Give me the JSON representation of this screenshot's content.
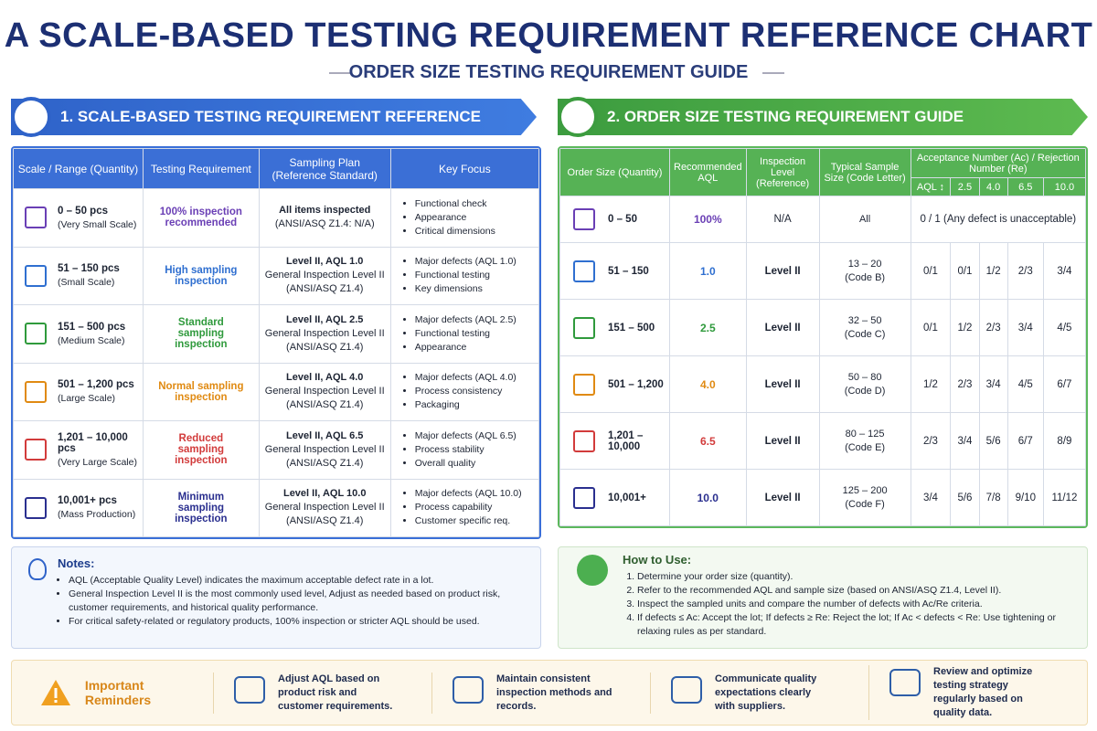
{
  "header": {
    "title": "A SCALE-BASED TESTING REQUIREMENT REFERENCE CHART",
    "subtitle": "ORDER SIZE TESTING REQUIREMENT GUIDE"
  },
  "left": {
    "title": "1. SCALE-BASED TESTING REQUIREMENT REFERENCE",
    "columns": [
      "Scale / Range (Quantity)",
      "Testing Requirement",
      "Sampling Plan (Reference Standard)",
      "Key Focus"
    ],
    "rows": [
      {
        "range": "0 – 50 pcs",
        "scale": "(Very Small Scale)",
        "requirement": "100% inspection recommended",
        "plan": [
          "All items inspected",
          "(ANSI/ASQ Z1.4: N/A)"
        ],
        "focus": [
          "Functional check",
          "Appearance",
          "Critical dimensions"
        ]
      },
      {
        "range": "51 – 150 pcs",
        "scale": "(Small Scale)",
        "requirement": "High sampling inspection",
        "plan": [
          "Level II, AQL 1.0",
          "General Inspection Level II",
          "(ANSI/ASQ Z1.4)"
        ],
        "focus": [
          "Major defects (AQL 1.0)",
          "Functional testing",
          "Key dimensions"
        ]
      },
      {
        "range": "151 – 500 pcs",
        "scale": "(Medium Scale)",
        "requirement": "Standard sampling inspection",
        "plan": [
          "Level II, AQL 2.5",
          "General Inspection Level II",
          "(ANSI/ASQ Z1.4)"
        ],
        "focus": [
          "Major defects (AQL 2.5)",
          "Functional testing",
          "Appearance"
        ]
      },
      {
        "range": "501 – 1,200 pcs",
        "scale": "(Large Scale)",
        "requirement": "Normal sampling inspection",
        "plan": [
          "Level II, AQL 4.0",
          "General Inspection Level II",
          "(ANSI/ASQ Z1.4)"
        ],
        "focus": [
          "Major defects (AQL 4.0)",
          "Process consistency",
          "Packaging"
        ]
      },
      {
        "range": "1,201 – 10,000 pcs",
        "scale": "(Very Large Scale)",
        "requirement": "Reduced sampling inspection",
        "plan": [
          "Level II, AQL 6.5",
          "General Inspection Level II",
          "(ANSI/ASQ Z1.4)"
        ],
        "focus": [
          "Major defects (AQL 6.5)",
          "Process stability",
          "Overall quality"
        ]
      },
      {
        "range": "10,001+ pcs",
        "scale": "(Mass Production)",
        "requirement": "Minimum sampling inspection",
        "plan": [
          "Level II, AQL 10.0",
          "General Inspection Level II",
          "(ANSI/ASQ Z1.4)"
        ],
        "focus": [
          "Major defects (AQL 10.0)",
          "Process capability",
          "Customer specific req."
        ]
      }
    ]
  },
  "right": {
    "title": "2. ORDER SIZE TESTING REQUIREMENT GUIDE",
    "columns": [
      "Order Size (Quantity)",
      "Recommended AQL",
      "Inspection Level (Reference)",
      "Typical Sample Size (Code Letter)",
      "Acceptance Number (Ac) / Rejection Number (Re)"
    ],
    "sub_columns": [
      "AQL ↕",
      "2.5",
      "4.0",
      "6.5",
      "10.0"
    ],
    "rows": [
      {
        "size": "0 – 50",
        "aql": "100%",
        "level": "N/A",
        "sample": [
          "All"
        ],
        "acre": [
          "0 / 1 (Any defect is unacceptable)"
        ]
      },
      {
        "size": "51 – 150",
        "aql": "1.0",
        "level": "Level II",
        "sample": [
          "13 – 20",
          "(Code B)"
        ],
        "acre": [
          "0/1",
          "0/1",
          "1/2",
          "2/3",
          "3/4"
        ]
      },
      {
        "size": "151 – 500",
        "aql": "2.5",
        "level": "Level II",
        "sample": [
          "32 – 50",
          "(Code C)"
        ],
        "acre": [
          "0/1",
          "1/2",
          "2/3",
          "3/4",
          "4/5"
        ]
      },
      {
        "size": "501 – 1,200",
        "aql": "4.0",
        "level": "Level II",
        "sample": [
          "50 – 80",
          "(Code D)"
        ],
        "acre": [
          "1/2",
          "2/3",
          "3/4",
          "4/5",
          "6/7"
        ]
      },
      {
        "size": "1,201 – 10,000",
        "aql": "6.5",
        "level": "Level II",
        "sample": [
          "80 – 125",
          "(Code E)"
        ],
        "acre": [
          "2/3",
          "3/4",
          "5/6",
          "6/7",
          "8/9"
        ]
      },
      {
        "size": "10,001+",
        "aql": "10.0",
        "level": "Level II",
        "sample": [
          "125 – 200",
          "(Code F)"
        ],
        "acre": [
          "3/4",
          "5/6",
          "7/8",
          "9/10",
          "11/12"
        ]
      }
    ]
  },
  "notes": {
    "title": "Notes:",
    "items": [
      "AQL (Acceptable Quality Level) indicates the maximum acceptable defect rate in a lot.",
      "General Inspection Level II is the most commonly used level, Adjust as needed based on product risk, customer requirements, and historical quality performance.",
      "For critical safety-related or regulatory products, 100% inspection or stricter AQL should be used."
    ]
  },
  "how_to_use": {
    "title": "How to Use:",
    "steps": [
      "Determine your order size (quantity).",
      "Refer to the recommended AQL and sample size (based on ANSI/ASQ Z1.4, Level II).",
      "Inspect the sampled units and compare the number of defects with Ac/Re criteria.",
      "If defects ≤ Ac: Accept the lot; If defects ≥ Re: Reject the lot; If Ac < defects < Re: Use tightening or relaxing rules as per standard."
    ]
  },
  "reminders": {
    "title": "Important Reminders",
    "items": [
      "Adjust AQL based on product risk and customer requirements.",
      "Maintain consistent inspection methods and records.",
      "Communicate quality expectations clearly with suppliers.",
      "Review and optimize testing strategy regularly based on quality data."
    ]
  }
}
